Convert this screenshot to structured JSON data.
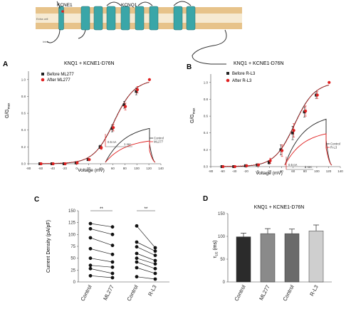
{
  "topo": {
    "kcne1": "KCNE1",
    "kcnq1": "KCNQ1",
    "extra": "Extra cell",
    "intra": "Intra"
  },
  "chart_data": [
    {
      "id": "A",
      "type": "scatter",
      "panel_label": "A",
      "title": "KNQ1 + KCNE1-D76N",
      "xlabel": "Voltage (mV)",
      "ylabel": "G/G",
      "ylabel_sub": "max",
      "xlim": [
        -80,
        140
      ],
      "ylim": [
        0,
        1.1
      ],
      "xticks": [
        -80,
        -60,
        -40,
        -20,
        0,
        20,
        40,
        60,
        80,
        100,
        120,
        140
      ],
      "yticks": [
        0,
        0.2,
        0.4,
        0.6,
        0.8,
        1.0
      ],
      "ytick_labels": [
        "0.0",
        "0.2",
        "0.4",
        "0.6",
        "0.8",
        "1.0"
      ],
      "legend_position": "top-left",
      "series": [
        {
          "name": "Before ML277",
          "color": "#222222",
          "x": [
            -60,
            -40,
            -20,
            0,
            20,
            40,
            60,
            80,
            100
          ],
          "y": [
            0.0,
            0.0,
            0.0,
            0.01,
            0.05,
            0.2,
            0.42,
            0.7,
            0.86
          ],
          "err": [
            0,
            0,
            0,
            0,
            0.01,
            0.02,
            0.04,
            0.04,
            0.04
          ]
        },
        {
          "name": "After ML277",
          "color": "#e02020",
          "x": [
            -60,
            -40,
            -20,
            0,
            20,
            40,
            60,
            80,
            100,
            120
          ],
          "y": [
            0.0,
            0.0,
            0.0,
            0.01,
            0.05,
            0.19,
            0.43,
            0.68,
            0.88,
            1.0
          ],
          "err": [
            0,
            0,
            0,
            0,
            0.01,
            0.02,
            0.04,
            0.04,
            0.04,
            0
          ]
        }
      ],
      "inset": {
        "legend": [
          {
            "name": "Control",
            "color": "#222222"
          },
          {
            "name": "ML277",
            "color": "#e02020"
          }
        ],
        "scale_y": "0.5 nA",
        "scale_x": "1 sec",
        "trace_max": [
          0.7,
          0.44
        ]
      }
    },
    {
      "id": "B",
      "type": "scatter",
      "panel_label": "B",
      "title": "KNQ1 + KCNE1-D76N",
      "xlabel": "Voltage (mV)",
      "ylabel": "G/G",
      "ylabel_sub": "max",
      "xlim": [
        -80,
        140
      ],
      "ylim": [
        0,
        1.1
      ],
      "xticks": [
        -80,
        -60,
        -40,
        -20,
        0,
        20,
        40,
        60,
        80,
        100,
        120,
        140
      ],
      "yticks": [
        0,
        0.2,
        0.4,
        0.6,
        0.8,
        1.0
      ],
      "ytick_labels": [
        "0.0",
        "0.2",
        "0.4",
        "0.6",
        "0.8",
        "1.0"
      ],
      "legend_position": "top-left",
      "series": [
        {
          "name": "Before R-L3",
          "color": "#222222",
          "x": [
            -60,
            -40,
            -20,
            0,
            20,
            40,
            60,
            80,
            100
          ],
          "y": [
            0.0,
            0.0,
            0.01,
            0.02,
            0.05,
            0.2,
            0.4,
            0.65,
            0.85
          ],
          "err": [
            0,
            0,
            0,
            0.01,
            0.02,
            0.06,
            0.08,
            0.06,
            0.04
          ]
        },
        {
          "name": "After R-L3",
          "color": "#e02020",
          "x": [
            -60,
            -40,
            -20,
            0,
            20,
            40,
            60,
            80,
            100,
            120
          ],
          "y": [
            0.0,
            0.0,
            0.01,
            0.02,
            0.07,
            0.19,
            0.43,
            0.66,
            0.85,
            1.0
          ],
          "err": [
            0,
            0,
            0,
            0.01,
            0.03,
            0.07,
            0.08,
            0.06,
            0.04,
            0
          ]
        }
      ],
      "inset": {
        "legend": [
          {
            "name": "Control",
            "color": "#222222"
          },
          {
            "name": "R-L3",
            "color": "#e02020"
          }
        ],
        "scale_y": "0.5 nA",
        "scale_x": "1 sec",
        "trace_max": [
          0.85,
          0.58
        ]
      }
    },
    {
      "id": "C",
      "type": "scatter",
      "panel_label": "C",
      "ylabel": "Current Density (pA/pF)",
      "ylim": [
        0,
        150
      ],
      "yticks": [
        0,
        25,
        50,
        75,
        100,
        125,
        150
      ],
      "categories": [
        "Control",
        "ML277",
        "Control",
        "R-L3"
      ],
      "significance": [
        "**",
        "**"
      ],
      "pairs": [
        {
          "left": 0,
          "right": 1,
          "before": [
            123,
            112,
            93,
            70,
            50,
            35,
            28,
            13
          ],
          "after": [
            116,
            100,
            77,
            58,
            42,
            31,
            18,
            9
          ]
        },
        {
          "left": 2,
          "right": 3,
          "before": [
            118,
            84,
            74,
            60,
            50,
            42,
            30,
            11
          ],
          "after": [
            72,
            65,
            56,
            45,
            38,
            28,
            18,
            6
          ]
        }
      ]
    },
    {
      "id": "D",
      "type": "bar",
      "panel_label": "D",
      "title": "KNQ1 + KCNE1-D76N",
      "ylabel": "τ",
      "ylabel_sub": "1/2",
      "ylabel_unit": " (ms)",
      "ylim": [
        0,
        150
      ],
      "yticks": [
        0,
        50,
        100,
        150
      ],
      "categories": [
        "Control",
        "ML277",
        "Control",
        "R-L3"
      ],
      "values": [
        99,
        106,
        106,
        112
      ],
      "errors": [
        8,
        11,
        10,
        13
      ],
      "colors": [
        "#2b2b2b",
        "#8a8a8a",
        "#6a6a6a",
        "#cfcfcf"
      ]
    }
  ]
}
